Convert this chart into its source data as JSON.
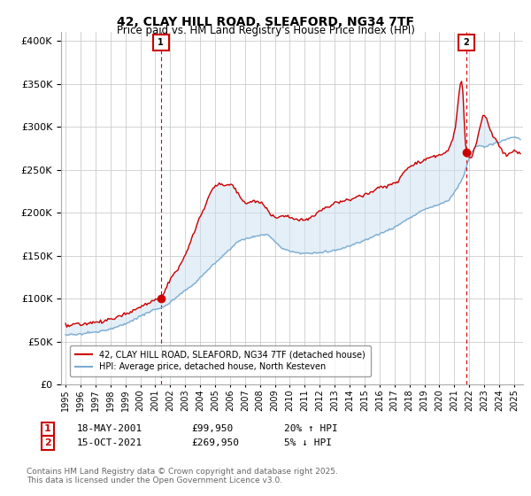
{
  "title": "42, CLAY HILL ROAD, SLEAFORD, NG34 7TF",
  "subtitle": "Price paid vs. HM Land Registry's House Price Index (HPI)",
  "ylim": [
    0,
    410000
  ],
  "red_color": "#cc0000",
  "blue_color": "#7aadd4",
  "marker1_date": 2001.375,
  "marker1_value": 99950,
  "marker2_date": 2021.79,
  "marker2_value": 269950,
  "legend_label_red": "42, CLAY HILL ROAD, SLEAFORD, NG34 7TF (detached house)",
  "legend_label_blue": "HPI: Average price, detached house, North Kesteven",
  "footnote": "Contains HM Land Registry data © Crown copyright and database right 2025.\nThis data is licensed under the Open Government Licence v3.0.",
  "background_color": "#ffffff",
  "plot_bg_color": "#ffffff",
  "grid_color": "#cccccc"
}
